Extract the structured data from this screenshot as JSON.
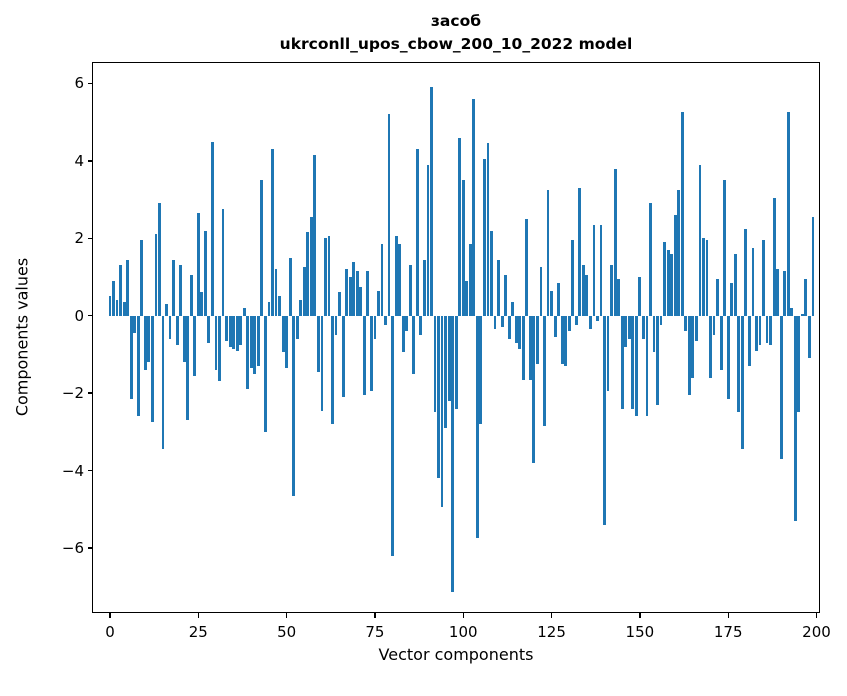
{
  "chart_data": {
    "type": "bar",
    "title_line1": "засоб",
    "title_line2": "ukrconll_upos_cbow_200_10_2022 model",
    "xlabel": "Vector components",
    "ylabel": "Components values",
    "bar_color": "#1f77b4",
    "axis_color": "#000000",
    "background_color": "#ffffff",
    "grid": false,
    "legend": null,
    "n_bars": 200,
    "x_range": [
      0,
      199
    ],
    "xlim": [
      -5.1,
      201.0
    ],
    "ylim": [
      -7.68,
      6.56
    ],
    "x_ticks": [
      0,
      25,
      50,
      75,
      100,
      125,
      150,
      175,
      200
    ],
    "x_tick_labels": [
      "0",
      "25",
      "50",
      "75",
      "100",
      "125",
      "150",
      "175",
      "200"
    ],
    "y_ticks": [
      6,
      4,
      2,
      0,
      -2,
      -4,
      -6
    ],
    "y_tick_labels": [
      "6",
      "4",
      "2",
      "0",
      "−2",
      "−4",
      "−6"
    ],
    "values": [
      0.5,
      0.9,
      0.4,
      1.3,
      0.35,
      1.45,
      -2.15,
      -0.45,
      -2.6,
      1.95,
      -1.4,
      -1.2,
      -2.75,
      2.1,
      2.9,
      -3.45,
      0.3,
      -0.6,
      1.45,
      -0.75,
      1.3,
      -1.2,
      -2.7,
      1.05,
      -1.55,
      2.65,
      0.6,
      2.2,
      -0.7,
      4.5,
      -1.4,
      -1.7,
      2.75,
      -0.65,
      -0.8,
      -0.85,
      -0.9,
      -0.75,
      0.2,
      -1.9,
      -1.35,
      -1.5,
      -1.3,
      3.5,
      -3.0,
      0.35,
      4.3,
      1.2,
      0.5,
      -0.95,
      -1.35,
      1.5,
      -4.65,
      -0.6,
      0.4,
      1.25,
      2.15,
      2.55,
      4.15,
      -1.45,
      -2.45,
      2.0,
      2.05,
      -2.8,
      -0.5,
      0.6,
      -2.1,
      1.2,
      1.0,
      1.4,
      1.15,
      0.75,
      -2.05,
      1.15,
      -1.95,
      -0.6,
      0.65,
      1.85,
      -0.25,
      5.2,
      -6.2,
      2.05,
      1.85,
      -0.95,
      -0.4,
      1.3,
      -1.5,
      4.3,
      -0.5,
      1.45,
      3.9,
      5.9,
      -2.5,
      -4.2,
      -4.95,
      -2.9,
      -2.2,
      -7.15,
      -2.4,
      4.6,
      3.5,
      0.9,
      1.85,
      5.6,
      -5.75,
      -2.8,
      4.05,
      4.45,
      2.2,
      -0.35,
      1.45,
      -0.3,
      1.05,
      -0.6,
      0.35,
      -0.7,
      -0.85,
      -1.65,
      2.5,
      -1.65,
      -3.8,
      -1.25,
      1.25,
      -2.85,
      3.25,
      0.65,
      -0.55,
      0.85,
      -1.25,
      -1.3,
      -0.4,
      1.95,
      -0.25,
      3.3,
      1.3,
      1.05,
      -0.35,
      2.35,
      -0.15,
      2.35,
      -5.4,
      -1.95,
      1.3,
      3.8,
      0.95,
      -2.4,
      -0.8,
      -0.6,
      -2.4,
      -2.6,
      1.0,
      -0.6,
      -2.6,
      2.9,
      -0.95,
      -2.3,
      -0.25,
      1.9,
      1.7,
      1.6,
      2.6,
      3.25,
      5.25,
      -0.4,
      -2.05,
      -1.6,
      -0.65,
      3.9,
      2.0,
      1.95,
      -1.6,
      -0.5,
      0.95,
      -1.4,
      3.5,
      -2.15,
      0.85,
      1.6,
      -2.5,
      -3.45,
      2.25,
      -1.3,
      1.75,
      -0.9,
      -0.75,
      1.95,
      -0.7,
      -0.75,
      3.05,
      1.2,
      -3.7,
      1.15,
      5.25,
      0.2,
      -5.3,
      -2.5,
      0.05,
      0.95,
      -1.1,
      2.55
    ]
  }
}
